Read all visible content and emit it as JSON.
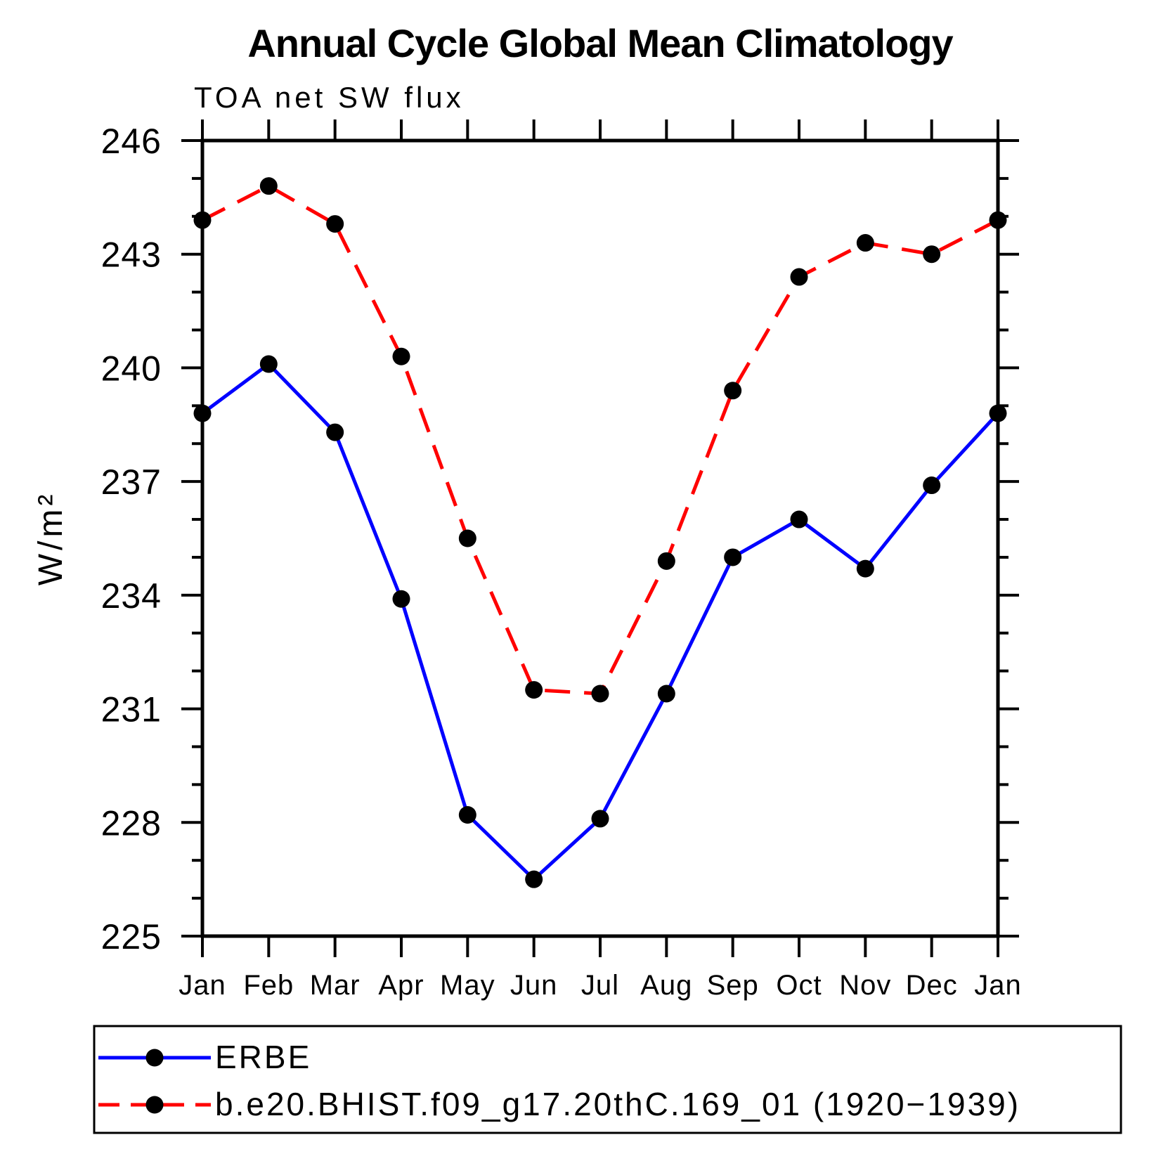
{
  "chart_data": {
    "type": "line",
    "title": "Annual Cycle Global Mean Climatology",
    "subtitle": "TOA net SW flux",
    "ylabel": "W/m²",
    "xlabel": "",
    "categories": [
      "Jan",
      "Feb",
      "Mar",
      "Apr",
      "May",
      "Jun",
      "Jul",
      "Aug",
      "Sep",
      "Oct",
      "Nov",
      "Dec",
      "Jan"
    ],
    "ylim": [
      225,
      246
    ],
    "ytick_major": [
      225,
      228,
      231,
      234,
      237,
      240,
      243,
      246
    ],
    "ytick_minor_step": 1,
    "grid": false,
    "legend_position": "bottom-left-box",
    "axis_color": "#000000",
    "background": "#ffffff",
    "marker_shape": "filled-circle",
    "series": [
      {
        "name": "ERBE",
        "color": "#0000ff",
        "line_style": "solid",
        "marker_color": "#000000",
        "values": [
          238.8,
          240.1,
          238.3,
          233.9,
          228.2,
          226.5,
          228.1,
          231.4,
          235.0,
          236.0,
          234.7,
          236.9,
          238.8
        ]
      },
      {
        "name": "b.e20.BHIST.f09_g17.20thC.169_01 (1920−1939)",
        "color": "#ff0000",
        "line_style": "dashed",
        "marker_color": "#000000",
        "values": [
          243.9,
          244.8,
          243.8,
          240.3,
          235.5,
          231.5,
          231.4,
          234.9,
          239.4,
          242.4,
          243.3,
          243.0,
          243.9
        ]
      }
    ]
  }
}
